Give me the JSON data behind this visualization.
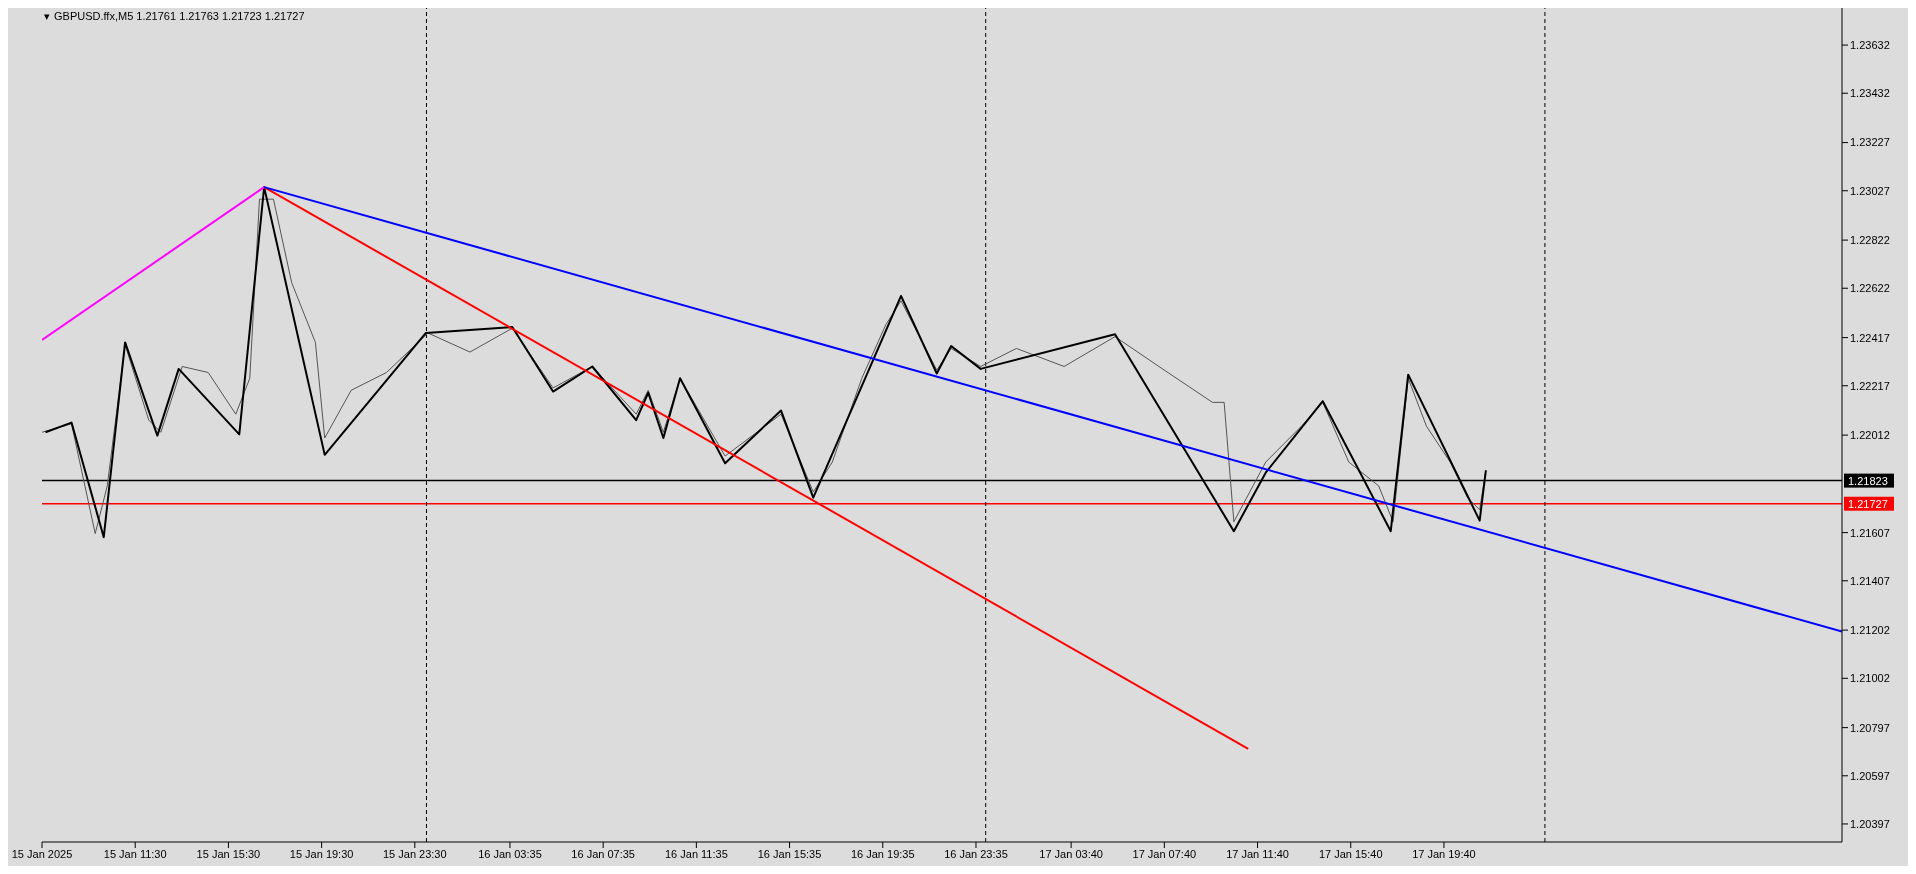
{
  "chart_data": {
    "type": "line",
    "title": "GBPUSD.ffx,M5  1.21761 1.21763 1.21723 1.21727",
    "xlim": [
      "2025-01-15T07:30",
      "2025-01-18T12:45"
    ],
    "xticks": [
      {
        "value": "2025-01-15T07:30",
        "label": "15 Jan 2025"
      },
      {
        "value": "2025-01-15T11:30",
        "label": "15 Jan 11:30"
      },
      {
        "value": "2025-01-15T15:30",
        "label": "15 Jan 15:30"
      },
      {
        "value": "2025-01-15T19:30",
        "label": "15 Jan 19:30"
      },
      {
        "value": "2025-01-15T23:30",
        "label": "15 Jan 23:30"
      },
      {
        "value": "2025-01-16T03:35",
        "label": "16 Jan 03:35"
      },
      {
        "value": "2025-01-16T07:35",
        "label": "16 Jan 07:35"
      },
      {
        "value": "2025-01-16T11:35",
        "label": "16 Jan 11:35"
      },
      {
        "value": "2025-01-16T15:35",
        "label": "16 Jan 15:35"
      },
      {
        "value": "2025-01-16T19:35",
        "label": "16 Jan 19:35"
      },
      {
        "value": "2025-01-16T23:35",
        "label": "16 Jan 23:35"
      },
      {
        "value": "2025-01-17T03:40",
        "label": "17 Jan 03:40"
      },
      {
        "value": "2025-01-17T07:40",
        "label": "17 Jan 07:40"
      },
      {
        "value": "2025-01-17T11:40",
        "label": "17 Jan 11:40"
      },
      {
        "value": "2025-01-17T15:40",
        "label": "17 Jan 15:40"
      },
      {
        "value": "2025-01-17T19:40",
        "label": "17 Jan 19:40"
      }
    ],
    "ylim": [
      1.20322,
      1.23786
    ],
    "yticks": [
      1.20397,
      1.20597,
      1.20797,
      1.21002,
      1.21202,
      1.21407,
      1.21607,
      1.22012,
      1.22217,
      1.22417,
      1.22622,
      1.22822,
      1.23027,
      1.23227,
      1.23432,
      1.23632
    ],
    "marker": "none",
    "line_style": "solid",
    "annotations": [
      "▾"
    ],
    "ref_lines": [
      {
        "axis": "y",
        "value": 1.21823,
        "label": "1.21823",
        "color": "#000000",
        "line_style": "solid"
      },
      {
        "axis": "y",
        "value": 1.21727,
        "label": "1.21727",
        "color": "#ff0000",
        "line_style": "solid"
      },
      {
        "axis": "x",
        "value": "2025-01-16T00:00",
        "color": "#000000",
        "line_style": "dashed"
      },
      {
        "axis": "x",
        "value": "2025-01-17T00:00",
        "color": "#000000",
        "line_style": "dashed"
      },
      {
        "axis": "x",
        "value": "2025-01-18T00:00",
        "color": "#000000",
        "line_style": "dashed"
      }
    ],
    "series": [
      {
        "color": "#555555",
        "x": [
          "2025-01-15T07:30",
          "2025-01-15T08:46",
          "2025-01-15T09:47",
          "2025-01-15T10:18",
          "2025-01-15T11:04",
          "2025-01-15T12:05",
          "2025-01-15T12:36",
          "2025-01-15T13:31",
          "2025-01-15T14:38",
          "2025-01-15T15:49",
          "2025-01-15T16:25",
          "2025-01-15T16:50",
          "2025-01-15T17:26",
          "2025-01-15T18:13",
          "2025-01-15T19:14",
          "2025-01-15T19:38",
          "2025-01-15T20:46",
          "2025-01-15T22:17",
          "2025-01-16T00:04",
          "2025-01-16T01:52",
          "2025-01-16T03:41",
          "2025-01-16T05:26",
          "2025-01-16T07:07",
          "2025-01-16T09:00",
          "2025-01-16T09:31",
          "2025-01-16T10:10",
          "2025-01-16T10:53",
          "2025-01-16T12:49",
          "2025-01-16T15:13",
          "2025-01-16T16:36",
          "2025-01-16T17:25",
          "2025-01-16T18:41",
          "2025-01-16T19:43",
          "2025-01-16T20:22",
          "2025-01-16T21:54",
          "2025-01-16T22:31",
          "2025-01-16T23:47",
          "2025-01-17T01:19",
          "2025-01-17T03:22",
          "2025-01-17T05:33",
          "2025-01-17T07:26",
          "2025-01-17T09:44",
          "2025-01-17T10:14",
          "2025-01-17T10:39",
          "2025-01-17T12:01",
          "2025-01-17T13:33",
          "2025-01-17T14:28",
          "2025-01-17T15:35",
          "2025-01-17T16:52",
          "2025-01-17T17:29",
          "2025-01-17T18:08",
          "2025-01-17T18:55",
          "2025-01-17T19:56",
          "2025-01-17T20:41",
          "2025-01-17T21:12",
          "2025-01-17T21:28"
        ],
        "values": [
          1.22024,
          1.22059,
          1.21603,
          1.21801,
          1.22387,
          1.22074,
          1.22024,
          1.22297,
          1.22272,
          1.22099,
          1.22248,
          1.22992,
          1.22992,
          1.22645,
          1.22397,
          1.22,
          1.22198,
          1.22272,
          1.22436,
          1.22357,
          1.22456,
          1.22208,
          1.22297,
          1.22099,
          1.22198,
          1.22024,
          1.22248,
          1.21925,
          1.22099,
          1.21776,
          1.219,
          1.22248,
          1.22471,
          1.2257,
          1.22282,
          1.22372,
          1.22297,
          1.22372,
          1.22297,
          1.22421,
          1.22297,
          1.22148,
          1.22148,
          1.21652,
          1.219,
          1.22049,
          1.22148,
          1.219,
          1.21801,
          1.21652,
          1.22248,
          1.22049,
          1.219,
          1.21751,
          1.21702,
          1.21866
        ]
      },
      {
        "color": "#000000",
        "x": [
          "2025-01-15T07:39",
          "2025-01-15T08:46",
          "2025-01-15T10:09",
          "2025-01-15T11:04",
          "2025-01-15T12:27",
          "2025-01-15T13:22",
          "2025-01-15T15:58",
          "2025-01-15T17:02",
          "2025-01-15T19:38",
          "2025-01-15T23:58",
          "2025-01-16T03:41",
          "2025-01-16T05:26",
          "2025-01-16T07:07",
          "2025-01-16T09:00",
          "2025-01-16T09:31",
          "2025-01-16T10:10",
          "2025-01-16T10:53",
          "2025-01-16T12:49",
          "2025-01-16T15:13",
          "2025-01-16T16:36",
          "2025-01-16T20:22",
          "2025-01-16T21:54",
          "2025-01-16T22:31",
          "2025-01-16T23:47",
          "2025-01-17T05:33",
          "2025-01-17T10:39",
          "2025-01-17T12:01",
          "2025-01-17T14:28",
          "2025-01-17T17:23",
          "2025-01-17T18:08",
          "2025-01-17T21:12",
          "2025-01-17T21:28"
        ],
        "values": [
          1.22024,
          1.22064,
          1.21588,
          1.22397,
          1.2201,
          1.22287,
          1.22015,
          1.23042,
          1.2193,
          1.22436,
          1.22461,
          1.22193,
          1.22297,
          1.22074,
          1.22188,
          1.22,
          1.22248,
          1.21895,
          1.22114,
          1.21752,
          1.2259,
          1.22268,
          1.22382,
          1.22287,
          1.22431,
          1.21613,
          1.21856,
          1.22153,
          1.21613,
          1.22263,
          1.21657,
          1.21866
        ]
      },
      {
        "color": "#ff00ff",
        "x": [
          "2025-01-15T07:30",
          "2025-01-15T17:02"
        ],
        "values": [
          1.22407,
          1.23042
        ]
      },
      {
        "color": "#ff0000",
        "x": [
          "2025-01-15T17:02",
          "2025-01-17T11:16"
        ],
        "values": [
          1.23042,
          1.20709
        ]
      },
      {
        "color": "#0000ff",
        "x": [
          "2025-01-15T17:02",
          "2025-01-18T12:45"
        ],
        "values": [
          1.23042,
          1.21196
        ]
      }
    ]
  }
}
